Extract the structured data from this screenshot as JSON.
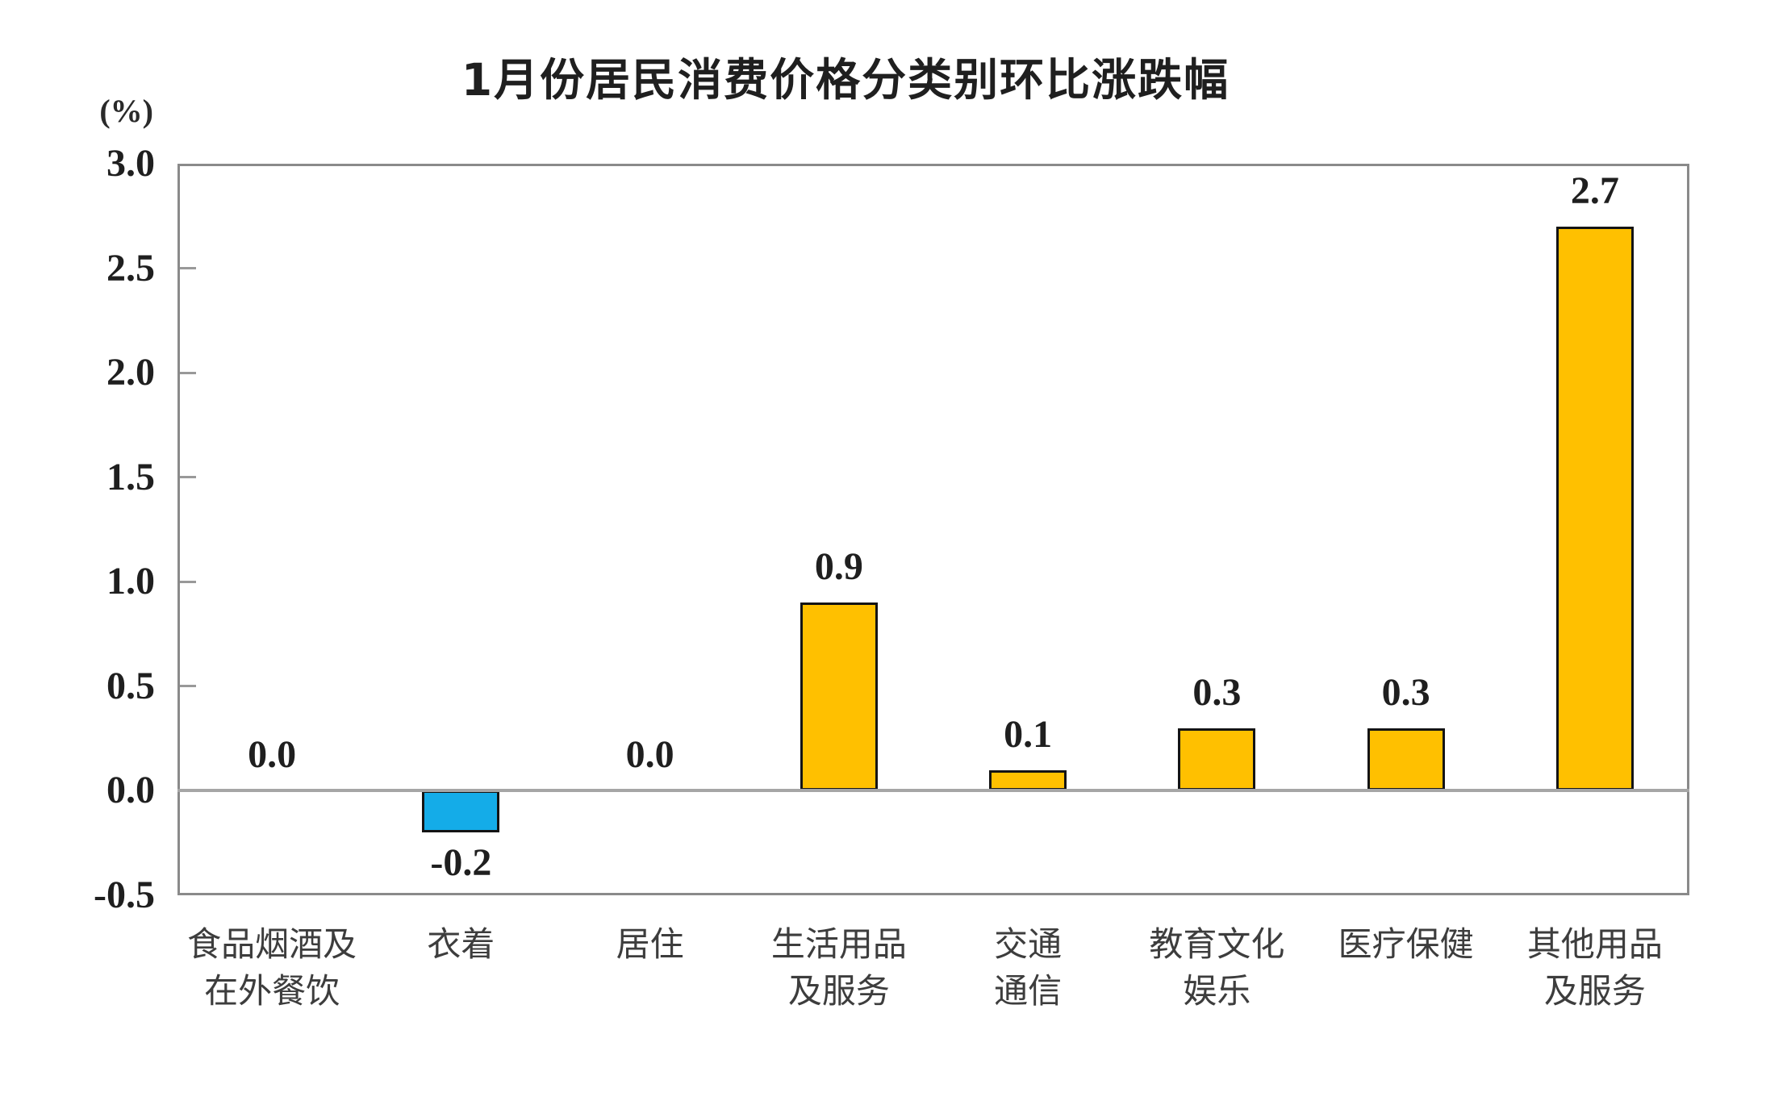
{
  "chart_data": {
    "type": "bar",
    "title": "1月份居民消费价格分类别环比涨跌幅",
    "unit_label": "(%)",
    "categories": [
      "食品烟酒及在外餐饮",
      "衣着",
      "居住",
      "生活用品及服务",
      "交通通信",
      "教育文化娱乐",
      "医疗保健",
      "其他用品及服务"
    ],
    "category_label_lines": [
      [
        "食品烟酒及",
        "在外餐饮"
      ],
      [
        "衣着"
      ],
      [
        "居住"
      ],
      [
        "生活用品",
        "及服务"
      ],
      [
        "交通",
        "通信"
      ],
      [
        "教育文化",
        "娱乐"
      ],
      [
        "医疗保健"
      ],
      [
        "其他用品",
        "及服务"
      ]
    ],
    "values": [
      0.0,
      -0.2,
      0.0,
      0.9,
      0.1,
      0.3,
      0.3,
      2.7
    ],
    "value_labels": [
      "0.0",
      "-0.2",
      "0.0",
      "0.9",
      "0.1",
      "0.3",
      "0.3",
      "2.7"
    ],
    "xlabel": "",
    "ylabel": "",
    "ylim": [
      -0.5,
      3.0
    ],
    "ytick_labels": [
      "3.0",
      "2.5",
      "2.0",
      "1.5",
      "1.0",
      "0.5",
      "0.0",
      "-0.5"
    ],
    "grid": false,
    "legend": null,
    "colors": {
      "bar_positive": "#FFC000",
      "bar_negative": "#14ACE8",
      "bar_border": "#141414",
      "plot_border": "#8A8A8A",
      "zero_line": "#A6A6A6",
      "tick_mark": "#999999",
      "text": "#1F1F1F"
    }
  }
}
